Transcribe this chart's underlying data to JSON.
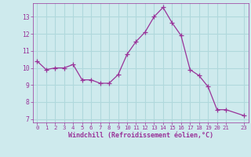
{
  "x": [
    0,
    1,
    2,
    3,
    4,
    5,
    6,
    7,
    8,
    9,
    10,
    11,
    12,
    13,
    14,
    15,
    16,
    17,
    18,
    19,
    20,
    21,
    23
  ],
  "y": [
    10.4,
    9.9,
    10.0,
    10.0,
    10.2,
    9.3,
    9.3,
    9.1,
    9.1,
    9.6,
    10.8,
    11.55,
    12.1,
    13.0,
    13.55,
    12.65,
    11.9,
    9.9,
    9.55,
    8.9,
    7.55,
    7.55,
    7.2
  ],
  "line_color": "#993399",
  "marker": "+",
  "marker_size": 4,
  "bg_color": "#ceeaed",
  "grid_color": "#b0d8dc",
  "xlabel": "Windchill (Refroidissement éolien,°C)",
  "xlabel_color": "#993399",
  "tick_color": "#993399",
  "spine_color": "#993399",
  "yticks": [
    7,
    8,
    9,
    10,
    11,
    12,
    13
  ],
  "xticks": [
    0,
    1,
    2,
    3,
    4,
    5,
    6,
    7,
    8,
    9,
    10,
    11,
    12,
    13,
    14,
    15,
    16,
    17,
    18,
    19,
    20,
    21,
    23
  ],
  "ylim": [
    6.8,
    13.8
  ],
  "xlim": [
    -0.5,
    23.5
  ]
}
